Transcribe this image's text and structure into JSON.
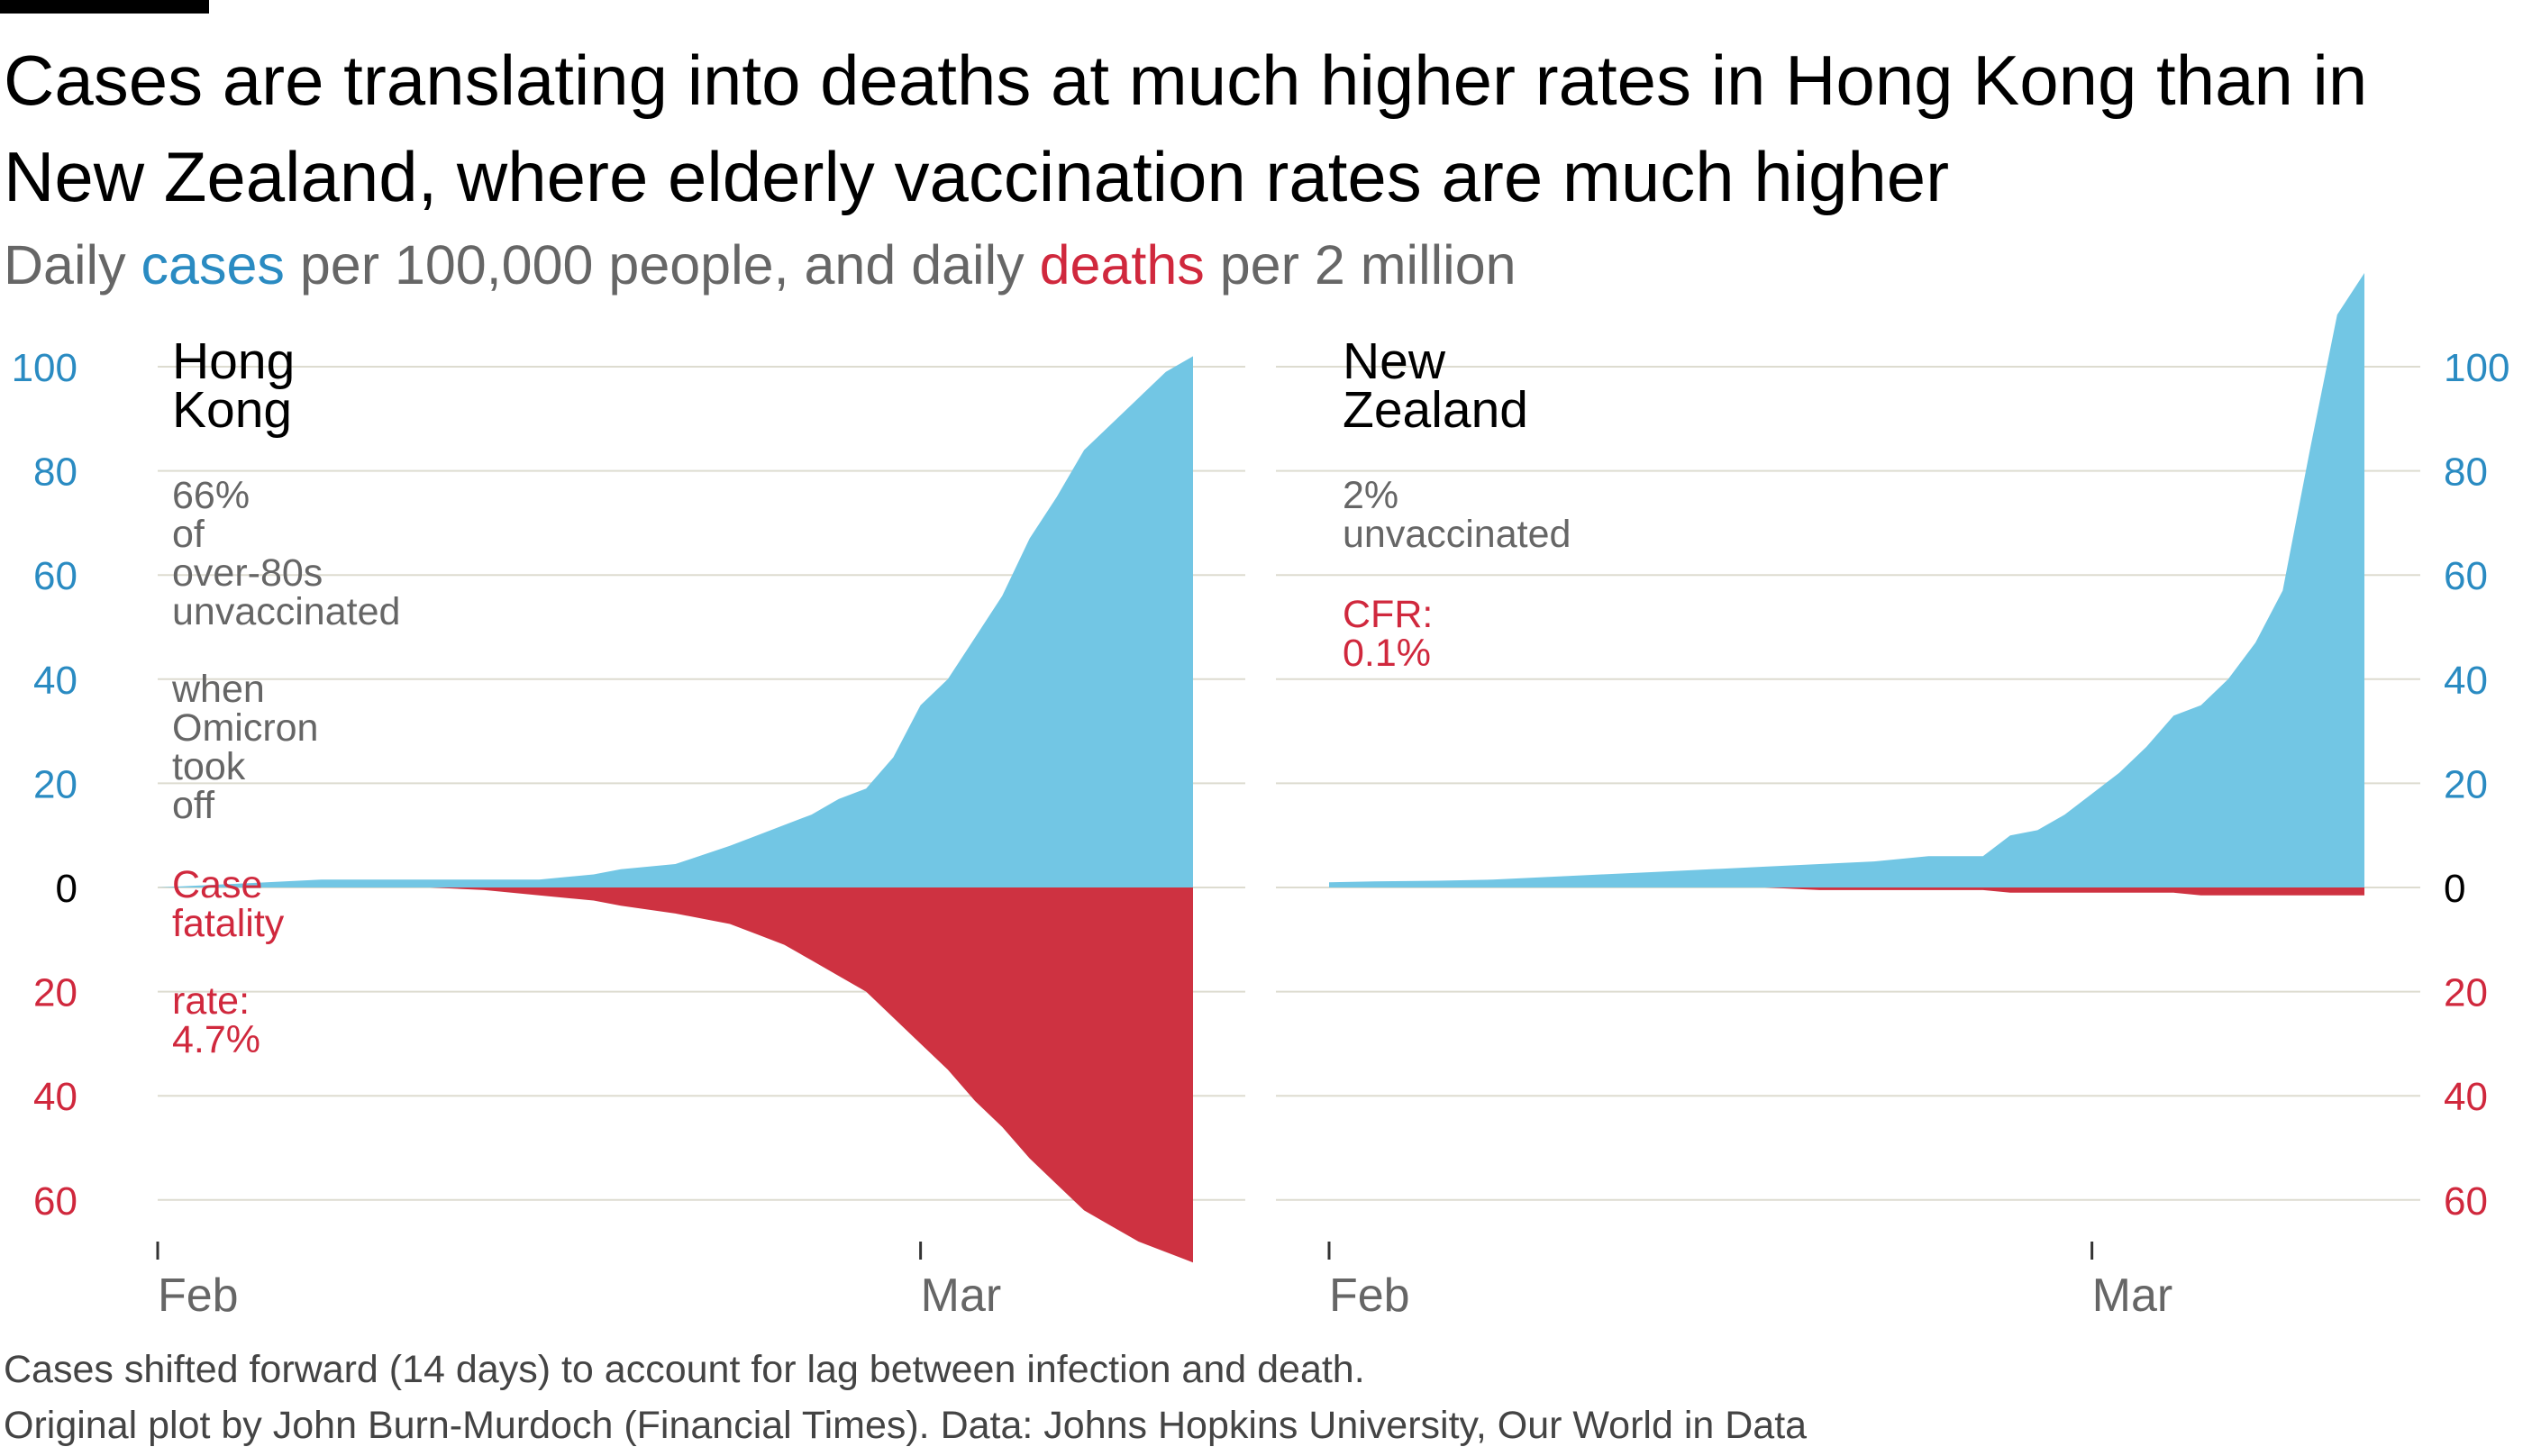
{
  "title": "Cases are translating into deaths at much higher rates in Hong Kong than in New Zealand, where elderly vaccination rates are much higher",
  "subtitle": {
    "part1": "Daily ",
    "cases_word": "cases",
    "part2": " per 100,000 people, and daily ",
    "deaths_word": "deaths",
    "part3": " per 2 million"
  },
  "footnotes": [
    "Cases shifted forward (14 days) to account for lag between infection and death.",
    "Original plot by John Burn-Murdoch (Financial Times). Data: Johns Hopkins University, Our World in Data"
  ],
  "colors": {
    "cases": "#72c6e4",
    "deaths": "#ce3241",
    "cases_label": "#2a8bc2",
    "deaths_label": "#d0283d",
    "grid": "#dddcd0"
  },
  "chart_data": [
    {
      "type": "area",
      "panel": "Hong Kong",
      "title_lines": [
        "Hong",
        "Kong"
      ],
      "annotation_grey": [
        "66%",
        "of",
        "over-80s",
        "unvaccinated",
        "",
        "when",
        "Omicron",
        "took",
        "off"
      ],
      "annotation_red": [
        "Case",
        "fatality",
        "",
        "rate:",
        "4.7%"
      ],
      "y_ticks_cases": [
        0,
        20,
        40,
        60,
        80,
        100
      ],
      "y_ticks_deaths": [
        20,
        40,
        60
      ],
      "y_axis_side": "left",
      "x_ticks": [
        {
          "day": 0,
          "label": "Feb"
        },
        {
          "day": 28,
          "label": "Mar"
        }
      ],
      "ylim": [
        -72,
        103
      ],
      "x_days": [
        0,
        2,
        4,
        6,
        8,
        10,
        12,
        14,
        16,
        17,
        19,
        21,
        22,
        23,
        24,
        25,
        26,
        27,
        28,
        29,
        30,
        31,
        32,
        33,
        34,
        35,
        36,
        37,
        38
      ],
      "cases": [
        0,
        0.5,
        1,
        1.5,
        1.5,
        1.5,
        1.5,
        1.5,
        2.5,
        3.5,
        4.5,
        8,
        10,
        12,
        14,
        17,
        19,
        25,
        35,
        40,
        48,
        56,
        67,
        75,
        84,
        89,
        94,
        99,
        102
      ],
      "deaths": [
        0,
        0,
        0,
        0,
        0,
        0,
        0.5,
        1.5,
        2.5,
        3.5,
        5,
        7,
        9,
        11,
        14,
        17,
        20,
        25,
        30,
        35,
        41,
        46,
        52,
        57,
        62,
        65,
        68,
        70,
        72
      ],
      "x_days_deaths": [
        0,
        2,
        4,
        6,
        8,
        10,
        12,
        14,
        16,
        17,
        19,
        21,
        22,
        23,
        24,
        25,
        26,
        27,
        28,
        29,
        30,
        31,
        32,
        33,
        34,
        35,
        36,
        37,
        38
      ]
    },
    {
      "type": "area",
      "panel": "New Zealand",
      "title_lines": [
        "New",
        "Zealand"
      ],
      "annotation_grey": [
        "2%",
        "unvaccinated"
      ],
      "annotation_red": [
        "CFR:",
        "0.1%"
      ],
      "y_ticks_cases": [
        0,
        20,
        40,
        60,
        80,
        100
      ],
      "y_ticks_deaths": [
        20,
        40,
        60
      ],
      "y_axis_side": "right",
      "x_ticks": [
        {
          "day": 0,
          "label": "Feb"
        },
        {
          "day": 28,
          "label": "Mar"
        }
      ],
      "ylim": [
        -72,
        103
      ],
      "x_days": [
        0,
        2,
        4,
        6,
        8,
        10,
        12,
        14,
        16,
        18,
        20,
        22,
        24,
        25,
        26,
        27,
        28,
        29,
        30,
        31,
        32,
        33,
        34,
        35,
        36,
        37,
        38
      ],
      "cases": [
        1,
        1.2,
        1.3,
        1.5,
        2,
        2.5,
        3,
        3.5,
        4,
        4.5,
        5,
        6,
        6,
        10,
        11,
        14,
        18,
        22,
        27,
        33,
        35,
        40,
        47,
        57,
        84,
        110,
        118
      ],
      "deaths": [
        0,
        0,
        0,
        0,
        0,
        0,
        0,
        0,
        0,
        0.5,
        0.5,
        0.5,
        0.5,
        1,
        1,
        1,
        1,
        1,
        1,
        1,
        1.5,
        1.5,
        1.5,
        1.5,
        1.5,
        1.5,
        1.5
      ],
      "x_days_deaths": [
        0,
        2,
        4,
        6,
        8,
        10,
        12,
        14,
        16,
        18,
        20,
        22,
        24,
        25,
        26,
        27,
        28,
        29,
        30,
        31,
        32,
        33,
        34,
        35,
        36,
        37,
        38
      ]
    }
  ]
}
